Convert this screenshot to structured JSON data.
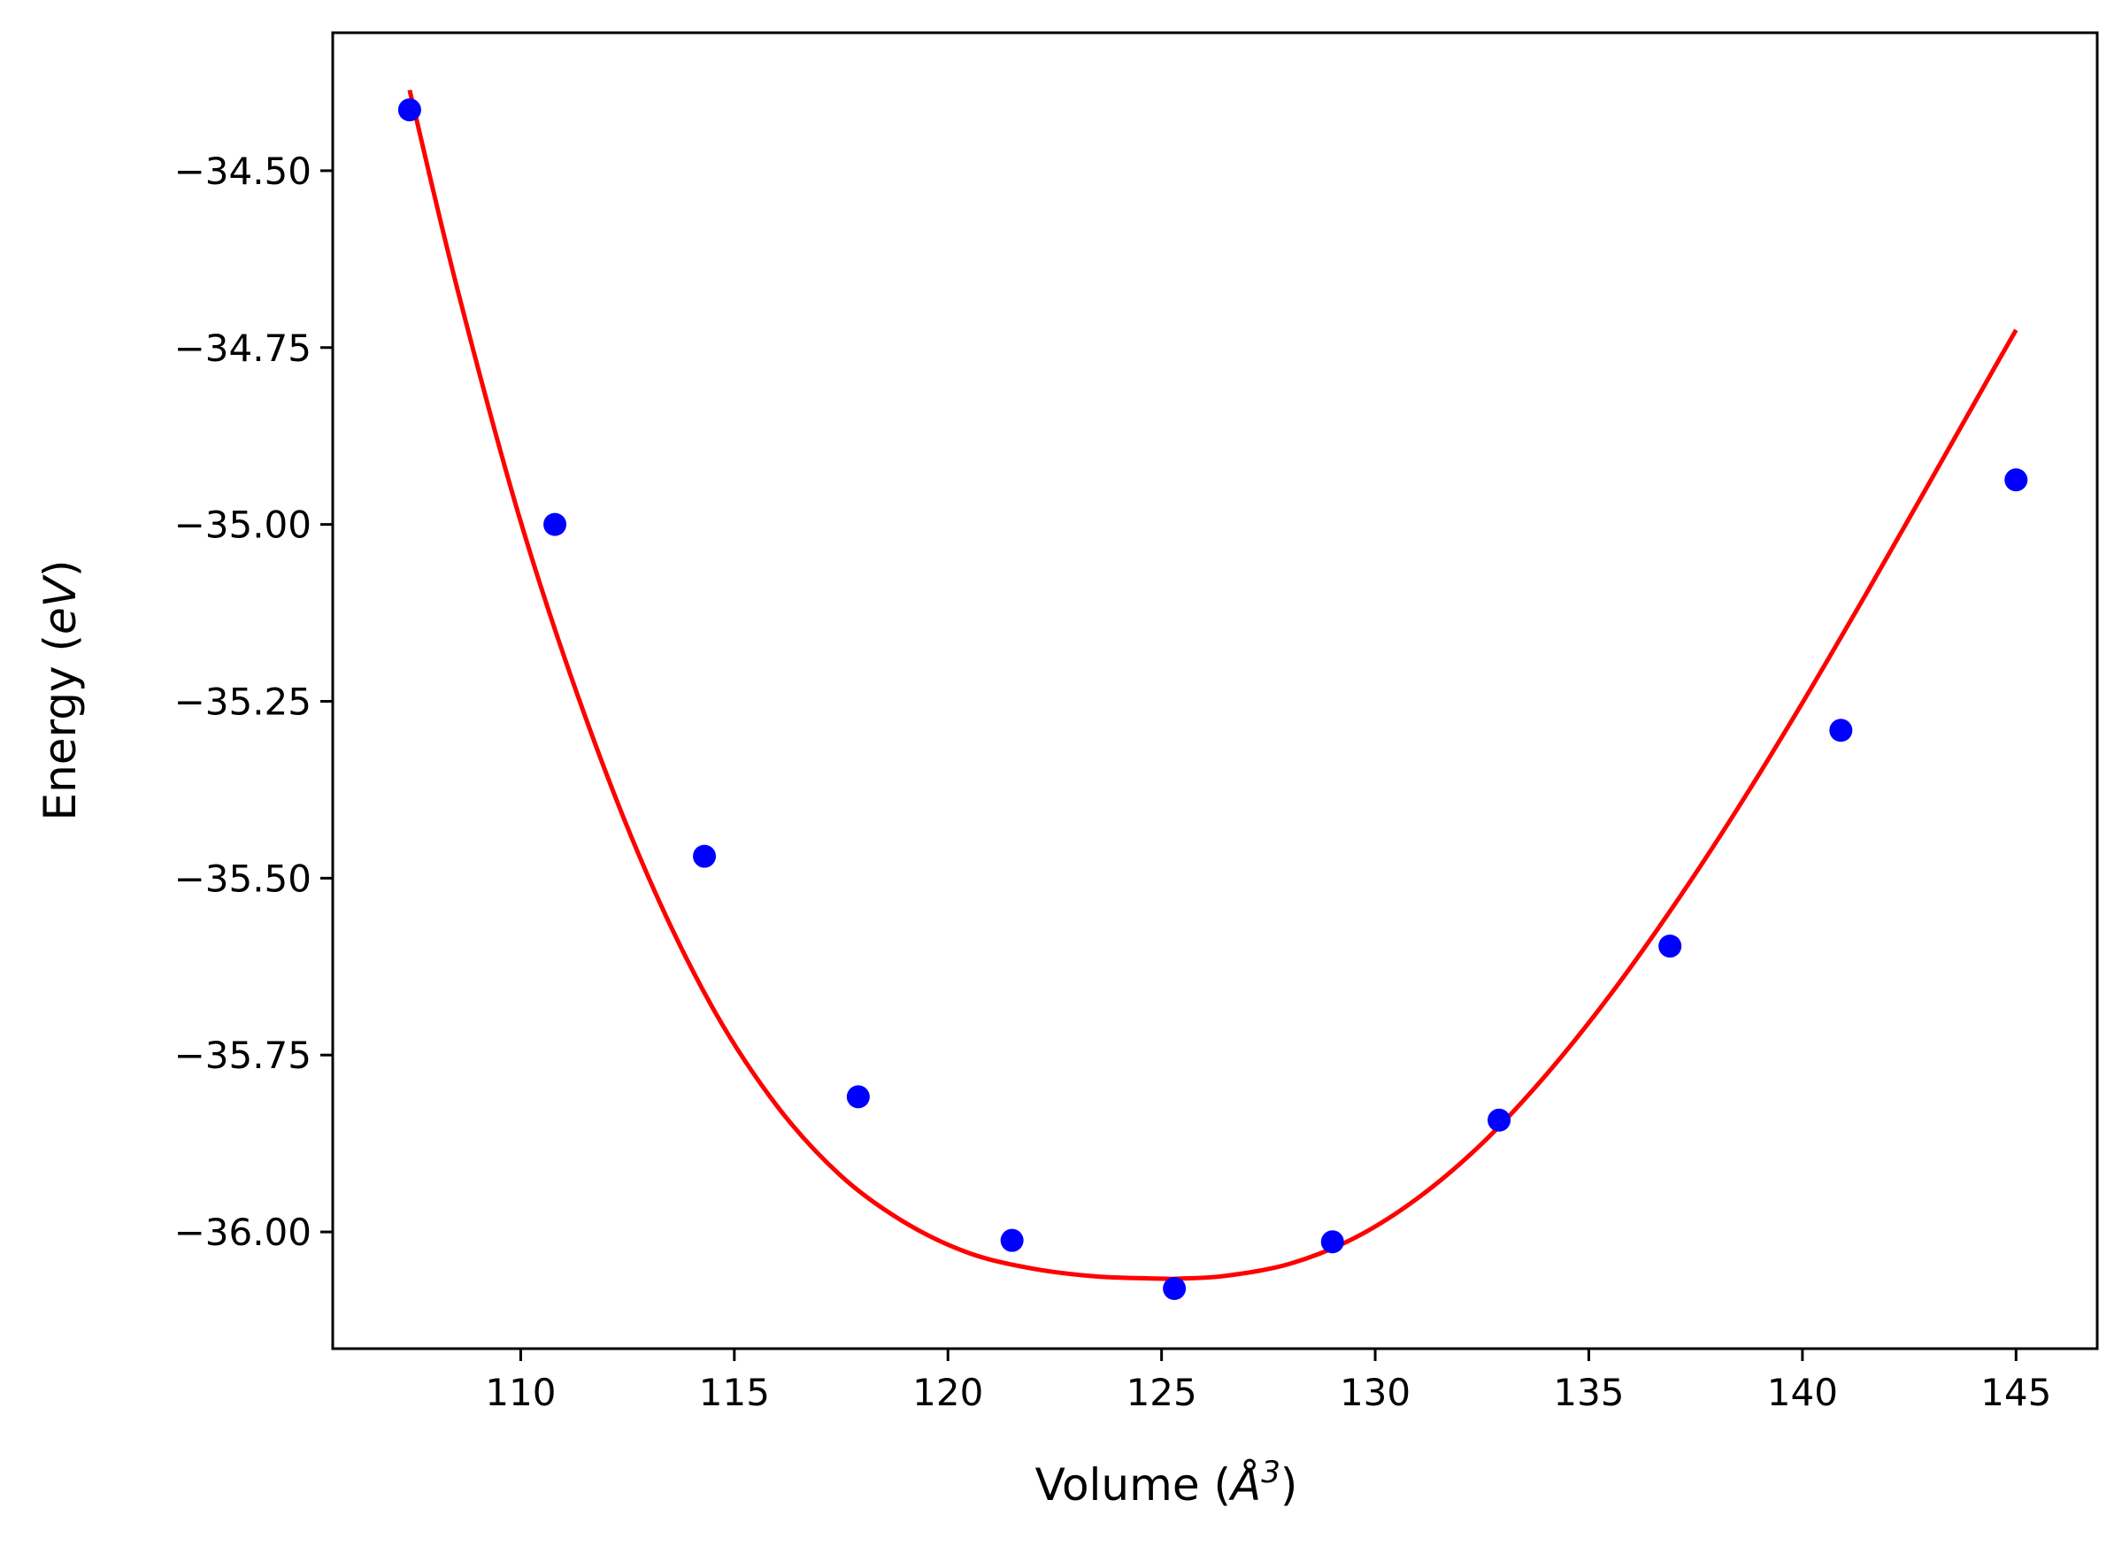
{
  "chart_data": {
    "type": "scatter",
    "xlabel": "Volume ($\\AA^3$)",
    "xlabel_parts": {
      "pre": "Volume (",
      "sym": "Å",
      "sup": "3",
      "post": ")"
    },
    "ylabel": "Energy ($eV$)",
    "ylabel_parts": {
      "pre": "Energy (",
      "it": "eV",
      "post": ")"
    },
    "xlim": [
      105.6,
      146.9
    ],
    "ylim": [
      -36.165,
      -34.305
    ],
    "grid": false,
    "x_ticks": [
      110,
      115,
      120,
      125,
      130,
      135,
      140,
      145
    ],
    "x_tick_labels": [
      "110",
      "115",
      "120",
      "125",
      "130",
      "135",
      "140",
      "145"
    ],
    "y_ticks": [
      -34.5,
      -34.75,
      -35.0,
      -35.25,
      -35.5,
      -35.75,
      -36.0
    ],
    "y_tick_labels": [
      "−34.50",
      "−34.75",
      "−35.00",
      "−35.25",
      "−35.50",
      "−35.75",
      "−36.00"
    ],
    "series": [
      {
        "kind": "points",
        "color": "#0000ff",
        "x": [
          107.4,
          110.8,
          114.3,
          117.9,
          121.5,
          125.3,
          129.0,
          132.9,
          136.9,
          140.9,
          145.0
        ],
        "y": [
          -34.414,
          -35.0,
          -35.469,
          -35.809,
          -36.012,
          -36.08,
          -36.014,
          -35.842,
          -35.596,
          -35.291,
          -34.937
        ]
      },
      {
        "kind": "fit-curve",
        "color": "#ff0000",
        "x": [
          107.4,
          108.5,
          110.0,
          111.5,
          113.0,
          114.5,
          116.0,
          117.5,
          119.0,
          120.5,
          122.0,
          123.5,
          125.0,
          125.4,
          126.5,
          128.0,
          129.5,
          131.0,
          132.5,
          134.0,
          135.5,
          137.0,
          138.5,
          140.0,
          141.5,
          143.0,
          144.5,
          145.0
        ],
        "y": [
          -34.386,
          -34.663,
          -34.996,
          -35.27,
          -35.5,
          -35.684,
          -35.822,
          -35.921,
          -35.987,
          -36.03,
          -36.052,
          -36.063,
          -36.066,
          -36.066,
          -36.062,
          -36.045,
          -36.009,
          -35.952,
          -35.875,
          -35.778,
          -35.665,
          -35.538,
          -35.4,
          -35.252,
          -35.097,
          -34.938,
          -34.778,
          -34.725
        ]
      }
    ]
  }
}
